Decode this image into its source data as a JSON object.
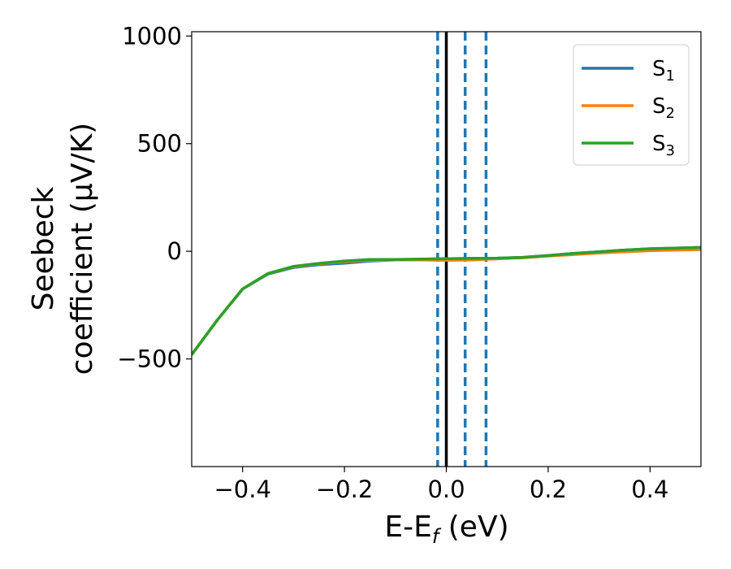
{
  "chart_data": {
    "type": "line",
    "xlabel": "E-E_f (eV)",
    "ylabel": "Seebeck  coefficient  (μV/K)",
    "xlim": [
      -0.5,
      0.5
    ],
    "ylim": [
      -1000,
      1020
    ],
    "x_ticks": [
      -0.4,
      -0.2,
      0.0,
      0.2,
      0.4
    ],
    "x_tick_labels": [
      "−0.4",
      "−0.2",
      "0.0",
      "0.2",
      "0.4"
    ],
    "y_ticks": [
      -500,
      0,
      500,
      1000
    ],
    "y_tick_labels": [
      "−500",
      "0",
      "500",
      "1000"
    ],
    "grid": false,
    "legend_position": "top-right",
    "vertical_lines": [
      {
        "x": 0.0,
        "style": "solid",
        "color": "#000000"
      },
      {
        "x": -0.017,
        "style": "dashed",
        "color": "#1f77b4"
      },
      {
        "x": 0.037,
        "style": "dashed",
        "color": "#1f77b4"
      },
      {
        "x": 0.078,
        "style": "dashed",
        "color": "#1f77b4"
      }
    ],
    "series": [
      {
        "name": "S1",
        "color": "#1f77b4",
        "x": [
          -0.5,
          -0.45,
          -0.4,
          -0.35,
          -0.3,
          -0.25,
          -0.2,
          -0.15,
          -0.1,
          -0.05,
          0.0,
          0.05,
          0.1,
          0.15,
          0.2,
          0.25,
          0.3,
          0.35,
          0.4,
          0.45,
          0.5
        ],
        "values": [
          -480,
          -320,
          -175,
          -105,
          -75,
          -62,
          -55,
          -45,
          -40,
          -37,
          -35,
          -33,
          -32,
          -28,
          -20,
          -10,
          -2,
          5,
          12,
          15,
          18
        ]
      },
      {
        "name": "S2",
        "color": "#ff7f0e",
        "x": [
          -0.5,
          -0.45,
          -0.4,
          -0.35,
          -0.3,
          -0.25,
          -0.2,
          -0.15,
          -0.1,
          -0.05,
          0.0,
          0.05,
          0.1,
          0.15,
          0.2,
          0.25,
          0.3,
          0.35,
          0.4,
          0.45,
          0.5
        ],
        "values": [
          -480,
          -320,
          -175,
          -103,
          -72,
          -58,
          -48,
          -42,
          -40,
          -40,
          -42,
          -40,
          -35,
          -30,
          -22,
          -15,
          -8,
          -2,
          3,
          6,
          8
        ]
      },
      {
        "name": "S3",
        "color": "#2ca02c",
        "x": [
          -0.5,
          -0.45,
          -0.4,
          -0.35,
          -0.3,
          -0.25,
          -0.2,
          -0.15,
          -0.1,
          -0.05,
          0.0,
          0.05,
          0.1,
          0.15,
          0.2,
          0.25,
          0.3,
          0.35,
          0.4,
          0.45,
          0.5
        ],
        "values": [
          -480,
          -320,
          -175,
          -103,
          -70,
          -56,
          -45,
          -38,
          -38,
          -36,
          -34,
          -33,
          -32,
          -28,
          -20,
          -10,
          -2,
          6,
          12,
          15,
          18
        ]
      }
    ]
  }
}
